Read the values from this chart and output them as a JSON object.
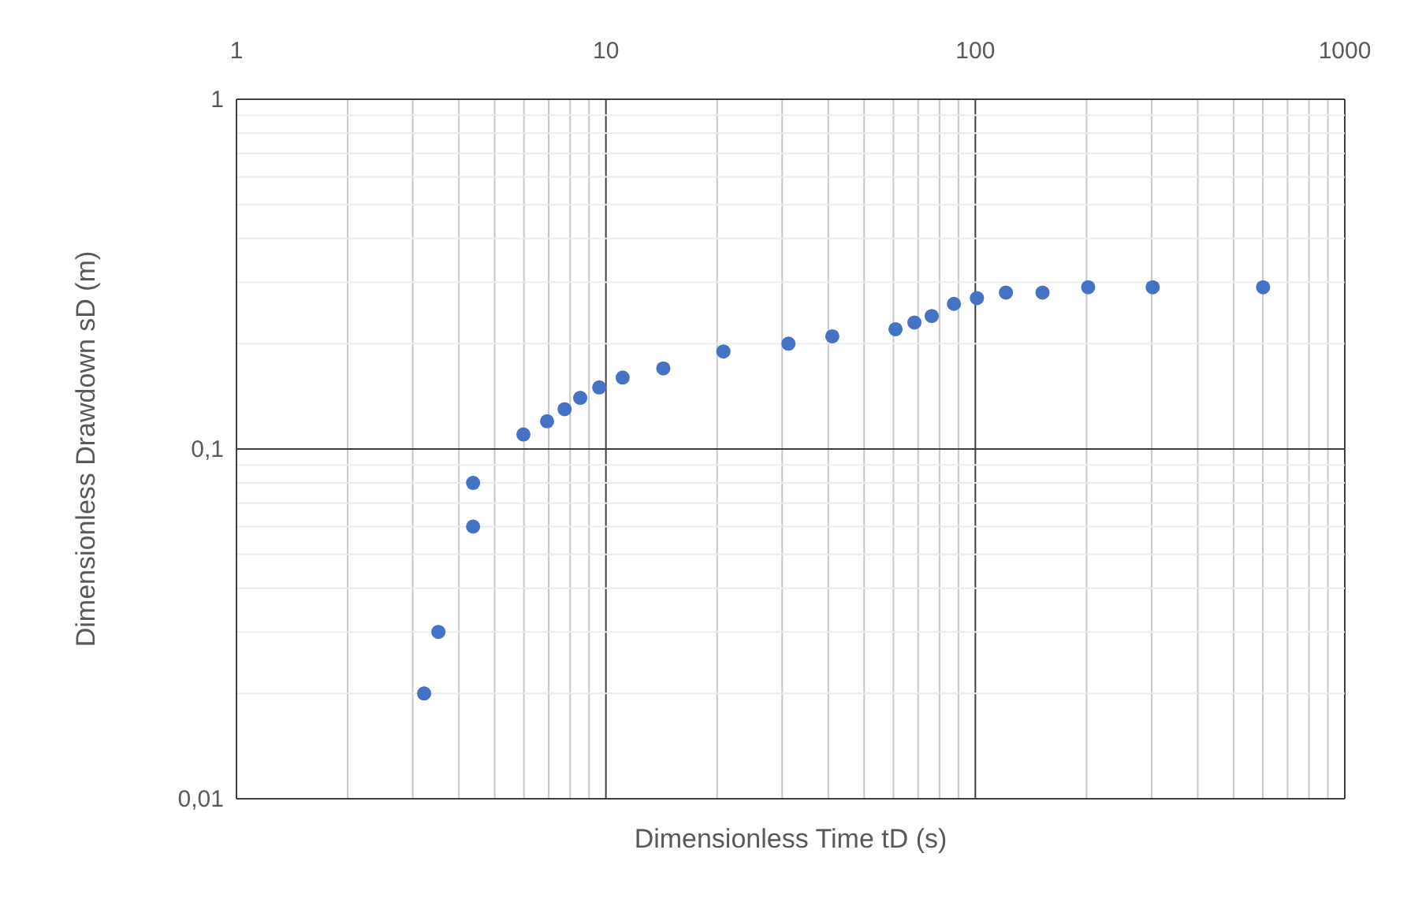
{
  "chart_data": {
    "type": "scatter",
    "xlabel": "Dimensionless Time tD (s)",
    "ylabel": "Dimensionless Drawdown sD (m)",
    "log": "xy",
    "grid": true,
    "marker": "circle",
    "xlim": [
      1,
      1000
    ],
    "ylim": [
      0.01,
      1
    ],
    "xticks": [
      1,
      {
        "value": 2,
        "label": null
      },
      {
        "value": 3,
        "label": null
      },
      {
        "value": 4,
        "label": null
      },
      {
        "value": 5,
        "label": null
      },
      {
        "value": 6,
        "label": null
      },
      {
        "value": 7,
        "label": null
      },
      {
        "value": 8,
        "label": null
      },
      {
        "value": 9,
        "label": null
      },
      10,
      {
        "value": 20,
        "label": null
      },
      {
        "value": 30,
        "label": null
      },
      {
        "value": 40,
        "label": null
      },
      {
        "value": 50,
        "label": null
      },
      {
        "value": 60,
        "label": null
      },
      {
        "value": 70,
        "label": null
      },
      {
        "value": 80,
        "label": null
      },
      {
        "value": 90,
        "label": null
      },
      100,
      {
        "value": 200,
        "label": null
      },
      {
        "value": 300,
        "label": null
      },
      {
        "value": 400,
        "label": null
      },
      {
        "value": 500,
        "label": null
      },
      {
        "value": 600,
        "label": null
      },
      {
        "value": 700,
        "label": null
      },
      {
        "value": 800,
        "label": null
      },
      {
        "value": 900,
        "label": null
      },
      1000
    ],
    "yticks": [
      {
        "value": 0.01,
        "label": "0,01"
      },
      {
        "value": 0.02,
        "label": null
      },
      {
        "value": 0.03,
        "label": null
      },
      {
        "value": 0.04,
        "label": null
      },
      {
        "value": 0.05,
        "label": null
      },
      {
        "value": 0.06,
        "label": null
      },
      {
        "value": 0.07,
        "label": null
      },
      {
        "value": 0.08,
        "label": null
      },
      {
        "value": 0.09,
        "label": null
      },
      {
        "value": 0.1,
        "label": "0,1"
      },
      {
        "value": 0.2,
        "label": null
      },
      {
        "value": 0.3,
        "label": null
      },
      {
        "value": 0.4,
        "label": null
      },
      {
        "value": 0.5,
        "label": null
      },
      {
        "value": 0.6,
        "label": null
      },
      {
        "value": 0.7,
        "label": null
      },
      {
        "value": 0.8,
        "label": null
      },
      {
        "value": 0.9,
        "label": null
      },
      1
    ],
    "series": [
      {
        "color": "#4472c4",
        "x": [
          3.22,
          3.52,
          4.37,
          4.37,
          5.98,
          6.93,
          7.73,
          8.52,
          9.59,
          11.1,
          14.3,
          20.8,
          31.2,
          41,
          60.8,
          68.4,
          76.2,
          87.5,
          101,
          121,
          152,
          202,
          302,
          601
        ],
        "values": [
          0.02,
          0.03,
          0.08,
          0.06,
          0.11,
          0.12,
          0.13,
          0.14,
          0.15,
          0.16,
          0.17,
          0.19,
          0.2,
          0.21,
          0.22,
          0.23,
          0.24,
          0.26,
          0.27,
          0.28,
          0.28,
          0.29,
          0.29,
          0.29
        ]
      }
    ]
  }
}
